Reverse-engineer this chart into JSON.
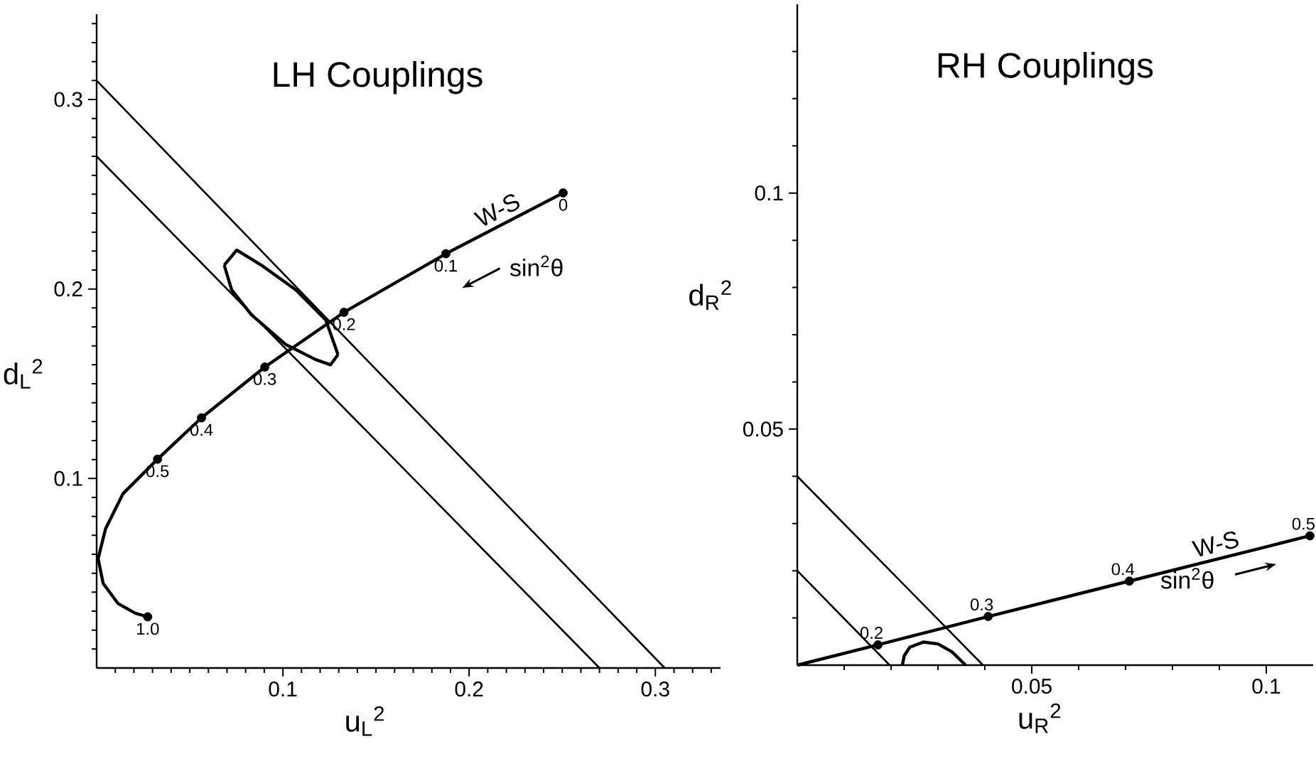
{
  "chart_data": [
    {
      "type": "line",
      "title": "LH Couplings",
      "xlabel": "u$_{L}$$^{2}$",
      "ylabel": "d$_{L}$$^{2}$",
      "xlim": [
        0,
        0.335
      ],
      "ylim": [
        0,
        0.345
      ],
      "xticks": [
        {
          "value": 0.01,
          "label": null
        },
        {
          "value": 0.02,
          "label": null
        },
        {
          "value": 0.03,
          "label": null
        },
        {
          "value": 0.04,
          "label": null
        },
        {
          "value": 0.05,
          "label": null
        },
        {
          "value": 0.06,
          "label": null
        },
        {
          "value": 0.07,
          "label": null
        },
        {
          "value": 0.08,
          "label": null
        },
        {
          "value": 0.09,
          "label": null
        },
        0.1,
        {
          "value": 0.11,
          "label": null
        },
        {
          "value": 0.12,
          "label": null
        },
        {
          "value": 0.13,
          "label": null
        },
        {
          "value": 0.14,
          "label": null
        },
        {
          "value": 0.15,
          "label": null
        },
        {
          "value": 0.16,
          "label": null
        },
        {
          "value": 0.17,
          "label": null
        },
        {
          "value": 0.18,
          "label": null
        },
        {
          "value": 0.19,
          "label": null
        },
        0.2,
        {
          "value": 0.21,
          "label": null
        },
        {
          "value": 0.22,
          "label": null
        },
        {
          "value": 0.23,
          "label": null
        },
        {
          "value": 0.24,
          "label": null
        },
        {
          "value": 0.25,
          "label": null
        },
        {
          "value": 0.26,
          "label": null
        },
        {
          "value": 0.27,
          "label": null
        },
        {
          "value": 0.28,
          "label": null
        },
        {
          "value": 0.29,
          "label": null
        },
        0.3,
        {
          "value": 0.31,
          "label": null
        },
        {
          "value": 0.32,
          "label": null
        },
        {
          "value": 0.33,
          "label": null
        }
      ],
      "yticks": [
        {
          "value": 0.01,
          "label": null
        },
        {
          "value": 0.02,
          "label": null
        },
        {
          "value": 0.03,
          "label": null
        },
        {
          "value": 0.04,
          "label": null
        },
        {
          "value": 0.05,
          "label": null
        },
        {
          "value": 0.06,
          "label": null
        },
        {
          "value": 0.07,
          "label": null
        },
        {
          "value": 0.08,
          "label": null
        },
        {
          "value": 0.09,
          "label": null
        },
        0.1,
        {
          "value": 0.11,
          "label": null
        },
        {
          "value": 0.12,
          "label": null
        },
        {
          "value": 0.13,
          "label": null
        },
        {
          "value": 0.14,
          "label": null
        },
        {
          "value": 0.15,
          "label": null
        },
        {
          "value": 0.16,
          "label": null
        },
        {
          "value": 0.17,
          "label": null
        },
        {
          "value": 0.18,
          "label": null
        },
        {
          "value": 0.19,
          "label": null
        },
        0.2,
        {
          "value": 0.21,
          "label": null
        },
        {
          "value": 0.22,
          "label": null
        },
        {
          "value": 0.23,
          "label": null
        },
        {
          "value": 0.24,
          "label": null
        },
        {
          "value": 0.25,
          "label": null
        },
        {
          "value": 0.26,
          "label": null
        },
        {
          "value": 0.27,
          "label": null
        },
        {
          "value": 0.28,
          "label": null
        },
        {
          "value": 0.29,
          "label": null
        },
        0.3,
        {
          "value": 0.31,
          "label": null
        },
        {
          "value": 0.32,
          "label": null
        },
        {
          "value": 0.33,
          "label": null
        },
        {
          "value": 0.34,
          "label": null
        }
      ],
      "series": [
        {
          "color": "#000000",
          "x": [
            0,
            0.305
          ],
          "values": [
            0.31,
            0
          ]
        },
        {
          "color": "#000000",
          "x": [
            0,
            0.27
          ],
          "values": [
            0.27,
            0
          ]
        },
        {
          "color": "#000000",
          "x": [
            0.0685,
            0.0752,
            0.0884,
            0.107,
            0.123,
            0.1296
          ],
          "values": [
            0.2126,
            0.2205,
            0.2126,
            0.1995,
            0.1837,
            0.1654
          ]
        },
        {
          "color": "#000000",
          "x": [
            0.0685,
            0.0725,
            0.0831,
            0.1017,
            0.1177,
            0.1256,
            0.1296
          ],
          "values": [
            0.2126,
            0.1995,
            0.1864,
            0.1706,
            0.1627,
            0.16,
            0.1654
          ]
        },
        {
          "name": "W-S",
          "color": "#000000",
          "x": [
            0.2505,
            0.1875,
            0.1328,
            0.0903,
            0.0563,
            0.0327,
            0.0141,
            0.0048,
            0.0008,
            0.0035,
            0.0114,
            0.0207,
            0.0274
          ],
          "values": [
            0.2507,
            0.2186,
            0.1877,
            0.1588,
            0.132,
            0.1102,
            0.0919,
            0.0735,
            0.0577,
            0.0446,
            0.0341,
            0.0289,
            0.027
          ]
        },
        {
          "type": "scatter",
          "color": "#000000",
          "x": [
            0.2505,
            0.1875,
            0.1328,
            0.0903,
            0.0563,
            0.0327,
            0.0274
          ],
          "values": [
            0.2507,
            0.2186,
            0.1877,
            0.1588,
            0.132,
            0.1102,
            0.027
          ]
        }
      ],
      "annotations": [
        {
          "text": "0",
          "x": 0.2505,
          "y": 0.2507
        },
        {
          "text": "0.1",
          "x": 0.1875,
          "y": 0.2186
        },
        {
          "text": "0.2",
          "x": 0.1328,
          "y": 0.1877
        },
        {
          "text": "0.3",
          "x": 0.0903,
          "y": 0.1588
        },
        {
          "text": "0.4",
          "x": 0.0563,
          "y": 0.132
        },
        {
          "text": "0.5",
          "x": 0.0327,
          "y": 0.1102
        },
        {
          "text": "1.0",
          "x": 0.0274,
          "y": 0.027
        },
        "sin$^{2}$θ"
      ]
    },
    {
      "type": "line",
      "title": "RH Couplings",
      "xlabel": "u$_{R}$$^{2}$",
      "ylabel": "d$_{R}$$^{2}$",
      "xlim": [
        0,
        0.11
      ],
      "ylim": [
        0,
        0.14
      ],
      "xticks": [
        {
          "value": 0.01,
          "label": null
        },
        {
          "value": 0.02,
          "label": null
        },
        {
          "value": 0.03,
          "label": null
        },
        {
          "value": 0.04,
          "label": null
        },
        0.05,
        {
          "value": 0.06,
          "label": null
        },
        {
          "value": 0.07,
          "label": null
        },
        {
          "value": 0.08,
          "label": null
        },
        {
          "value": 0.09,
          "label": null
        },
        0.1
      ],
      "yticks": [
        {
          "value": 0.01,
          "label": null
        },
        {
          "value": 0.02,
          "label": null
        },
        {
          "value": 0.03,
          "label": null
        },
        {
          "value": 0.04,
          "label": null
        },
        0.05,
        {
          "value": 0.06,
          "label": null
        },
        {
          "value": 0.07,
          "label": null
        },
        {
          "value": 0.08,
          "label": null
        },
        {
          "value": 0.09,
          "label": null
        },
        0.1,
        {
          "value": 0.11,
          "label": null
        },
        {
          "value": 0.12,
          "label": null
        },
        {
          "value": 0.13,
          "label": null
        }
      ],
      "series": [
        {
          "color": "#000000",
          "x": [
            0,
            0.0396
          ],
          "values": [
            0.04,
            0
          ]
        },
        {
          "color": "#000000",
          "x": [
            0,
            0.0197
          ],
          "values": [
            0.02,
            0
          ]
        },
        {
          "color": "#000000",
          "x": [
            0.0224,
            0.0228,
            0.024,
            0.0269,
            0.03,
            0.033,
            0.0359
          ],
          "values": [
            0,
            0.002,
            0.0038,
            0.0049,
            0.0045,
            0.0028,
            0
          ]
        },
        {
          "name": "W-S",
          "color": "#000000",
          "x": [
            0,
            0.0172,
            0.0407,
            0.0708,
            0.1093
          ],
          "values": [
            0,
            0.0043,
            0.0103,
            0.0178,
            0.0274
          ]
        },
        {
          "type": "scatter",
          "color": "#000000",
          "x": [
            0.0172,
            0.0407,
            0.0708,
            0.1093
          ],
          "values": [
            0.0043,
            0.0103,
            0.0178,
            0.0274
          ]
        }
      ],
      "annotations": [
        {
          "text": "0.2",
          "x": 0.0172,
          "y": 0.0043
        },
        {
          "text": "0.3",
          "x": 0.0407,
          "y": 0.0103
        },
        {
          "text": "0.4",
          "x": 0.0708,
          "y": 0.0178
        },
        {
          "text": "0.5",
          "x": 0.1093,
          "y": 0.0274
        },
        "sin$^{2}$θ"
      ]
    }
  ]
}
